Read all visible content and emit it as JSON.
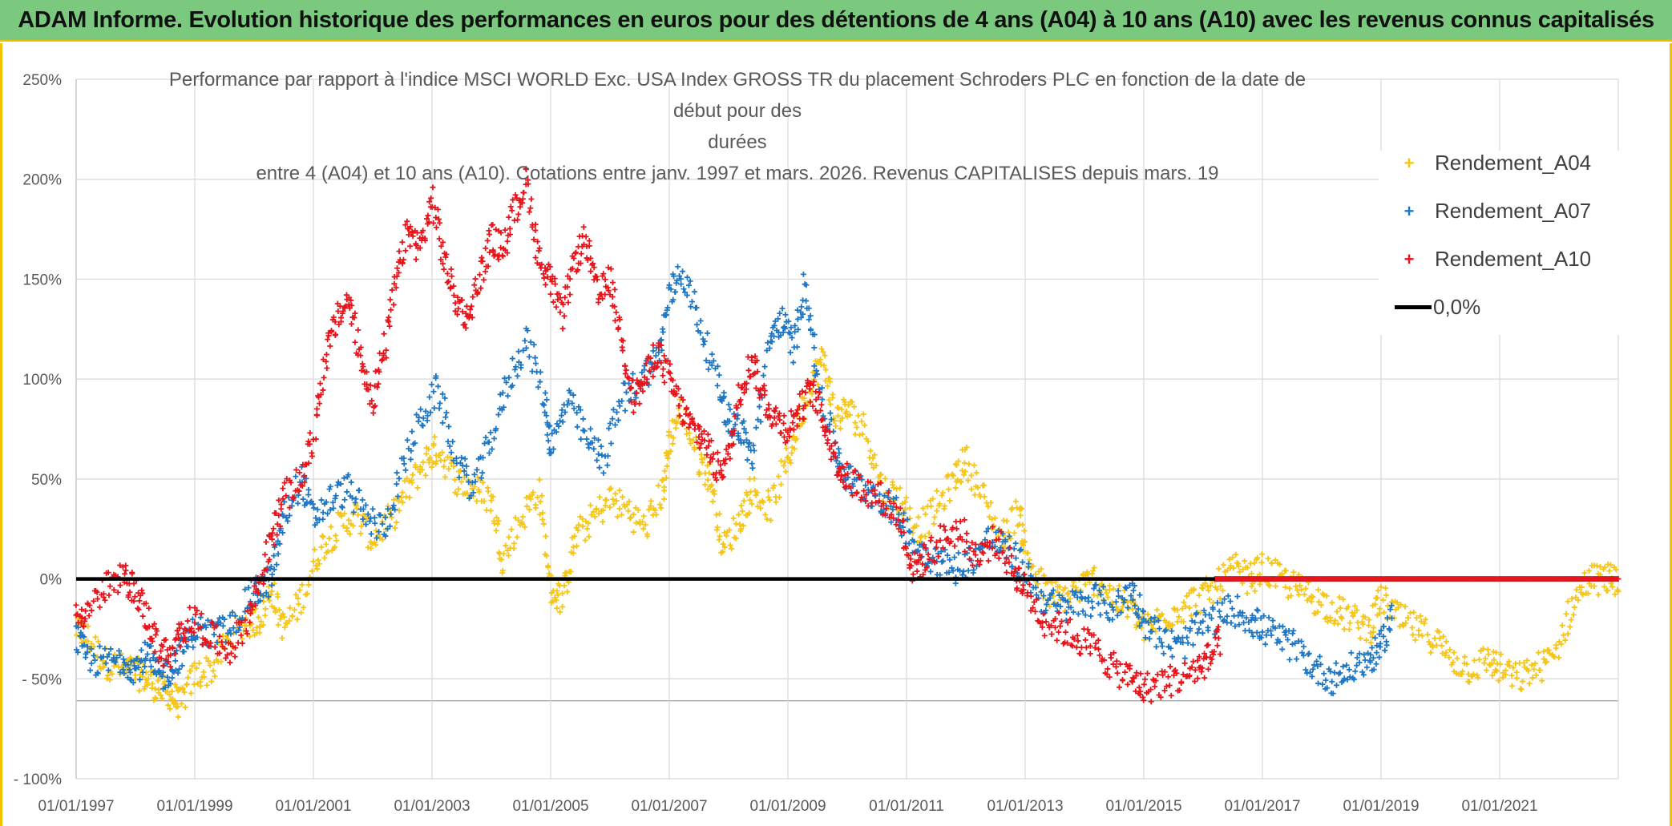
{
  "header": {
    "title": "ADAM Informe. Evolution historique des performances en euros pour des détentions de 4 ans (A04) à 10 ans (A10) avec les revenus connus capitalisés"
  },
  "chart_data": {
    "type": "scatter",
    "title_lines": [
      "Performance par rapport à l'indice MSCI WORLD Exc. USA Index GROSS TR  du placement Schroders PLC en fonction de la date de début pour des",
      "durées",
      "entre 4 (A04) et 10 ans (A10). Cotations entre janv. 1997 et mars. 2026. Revenus CAPITALISES depuis mars. 19"
    ],
    "xlabel": "",
    "ylabel": "",
    "x_range": [
      1997.0,
      2023.0
    ],
    "ylim": [
      -100,
      250
    ],
    "y_ticks": [
      "250%",
      "200%",
      "150%",
      "100%",
      "50%",
      "0%",
      "- 50%",
      "- 100%"
    ],
    "y_tick_values": [
      250,
      200,
      150,
      100,
      50,
      0,
      -50,
      -100
    ],
    "x_ticks": [
      "01/01/1997",
      "01/01/1999",
      "01/01/2001",
      "01/01/2003",
      "01/01/2005",
      "01/01/2007",
      "01/01/2009",
      "01/01/2011",
      "01/01/2013",
      "01/01/2015",
      "01/01/2017",
      "01/01/2019",
      "01/01/2021"
    ],
    "x_tick_values": [
      1997,
      1999,
      2001,
      2003,
      2005,
      2007,
      2009,
      2011,
      2013,
      2015,
      2017,
      2019,
      2021
    ],
    "grid": true,
    "legend_position": "top-right",
    "series": [
      {
        "name": "Rendement_A04",
        "color": "#f5c518",
        "marker": "+",
        "points": [
          [
            1997.0,
            -25
          ],
          [
            1997.2,
            -30
          ],
          [
            1997.5,
            -42
          ],
          [
            1997.8,
            -45
          ],
          [
            1998.0,
            -47
          ],
          [
            1998.2,
            -50
          ],
          [
            1998.4,
            -55
          ],
          [
            1998.6,
            -58
          ],
          [
            1998.75,
            -63
          ],
          [
            1999.0,
            -48
          ],
          [
            1999.3,
            -45
          ],
          [
            1999.6,
            -28
          ],
          [
            1999.9,
            -22
          ],
          [
            2000.1,
            -20
          ],
          [
            2000.3,
            -5
          ],
          [
            2000.5,
            -25
          ],
          [
            2000.8,
            -10
          ],
          [
            2001.1,
            15
          ],
          [
            2001.4,
            25
          ],
          [
            2001.7,
            32
          ],
          [
            2002.0,
            20
          ],
          [
            2002.3,
            30
          ],
          [
            2002.6,
            45
          ],
          [
            2002.9,
            60
          ],
          [
            2003.1,
            65
          ],
          [
            2003.4,
            50
          ],
          [
            2003.7,
            45
          ],
          [
            2004.0,
            40
          ],
          [
            2004.2,
            10
          ],
          [
            2004.5,
            30
          ],
          [
            2004.8,
            45
          ],
          [
            2005.0,
            -5
          ],
          [
            2005.2,
            -10
          ],
          [
            2005.4,
            20
          ],
          [
            2005.7,
            30
          ],
          [
            2006.0,
            40
          ],
          [
            2006.3,
            35
          ],
          [
            2006.6,
            25
          ],
          [
            2006.9,
            45
          ],
          [
            2007.0,
            70
          ],
          [
            2007.2,
            85
          ],
          [
            2007.5,
            60
          ],
          [
            2007.7,
            50
          ],
          [
            2007.9,
            15
          ],
          [
            2008.2,
            30
          ],
          [
            2008.4,
            45
          ],
          [
            2008.7,
            35
          ],
          [
            2009.0,
            60
          ],
          [
            2009.2,
            80
          ],
          [
            2009.4,
            100
          ],
          [
            2009.6,
            110
          ],
          [
            2009.8,
            80
          ],
          [
            2010.0,
            85
          ],
          [
            2010.3,
            75
          ],
          [
            2010.6,
            45
          ],
          [
            2010.9,
            40
          ],
          [
            2011.2,
            25
          ],
          [
            2011.5,
            35
          ],
          [
            2011.8,
            50
          ],
          [
            2012.0,
            60
          ],
          [
            2012.3,
            40
          ],
          [
            2012.6,
            20
          ],
          [
            2012.9,
            35
          ],
          [
            2013.0,
            15
          ],
          [
            2013.3,
            -5
          ],
          [
            2013.6,
            -10
          ],
          [
            2013.9,
            -5
          ],
          [
            2014.2,
            0
          ],
          [
            2014.5,
            -10
          ],
          [
            2014.8,
            -15
          ],
          [
            2015.0,
            -25
          ],
          [
            2015.3,
            -20
          ],
          [
            2015.6,
            -15
          ],
          [
            2015.9,
            -10
          ],
          [
            2016.2,
            -5
          ],
          [
            2016.5,
            5
          ],
          [
            2016.8,
            0
          ],
          [
            2017.0,
            5
          ],
          [
            2017.3,
            0
          ],
          [
            2017.6,
            -5
          ],
          [
            2017.9,
            -10
          ],
          [
            2018.2,
            -15
          ],
          [
            2018.5,
            -20
          ],
          [
            2018.8,
            -25
          ],
          [
            2019.0,
            -10
          ],
          [
            2019.3,
            -20
          ],
          [
            2019.6,
            -25
          ],
          [
            2019.9,
            -30
          ],
          [
            2020.2,
            -40
          ],
          [
            2020.5,
            -45
          ],
          [
            2020.8,
            -40
          ],
          [
            2021.0,
            -45
          ],
          [
            2021.3,
            -50
          ],
          [
            2021.6,
            -45
          ],
          [
            2021.9,
            -40
          ],
          [
            2022.2,
            -15
          ],
          [
            2022.5,
            0
          ],
          [
            2022.8,
            0
          ],
          [
            2023.0,
            0
          ]
        ]
      },
      {
        "name": "Rendement_A07",
        "color": "#1f77c4",
        "marker": "+",
        "points": [
          [
            1997.0,
            -30
          ],
          [
            1997.2,
            -40
          ],
          [
            1997.5,
            -42
          ],
          [
            1997.8,
            -40
          ],
          [
            1998.0,
            -45
          ],
          [
            1998.2,
            -38
          ],
          [
            1998.4,
            -50
          ],
          [
            1998.6,
            -45
          ],
          [
            1998.8,
            -35
          ],
          [
            1999.0,
            -25
          ],
          [
            1999.3,
            -28
          ],
          [
            1999.6,
            -25
          ],
          [
            1999.9,
            -10
          ],
          [
            2000.1,
            -5
          ],
          [
            2000.3,
            0
          ],
          [
            2000.5,
            30
          ],
          [
            2000.8,
            50
          ],
          [
            2001.0,
            30
          ],
          [
            2001.3,
            40
          ],
          [
            2001.6,
            45
          ],
          [
            2001.9,
            30
          ],
          [
            2002.2,
            25
          ],
          [
            2002.5,
            55
          ],
          [
            2002.8,
            80
          ],
          [
            2003.1,
            95
          ],
          [
            2003.4,
            60
          ],
          [
            2003.7,
            45
          ],
          [
            2004.0,
            70
          ],
          [
            2004.3,
            100
          ],
          [
            2004.6,
            120
          ],
          [
            2004.9,
            90
          ],
          [
            2005.0,
            65
          ],
          [
            2005.3,
            90
          ],
          [
            2005.6,
            70
          ],
          [
            2005.9,
            60
          ],
          [
            2006.2,
            90
          ],
          [
            2006.5,
            100
          ],
          [
            2006.8,
            110
          ],
          [
            2007.0,
            140
          ],
          [
            2007.2,
            155
          ],
          [
            2007.5,
            130
          ],
          [
            2007.8,
            100
          ],
          [
            2008.0,
            80
          ],
          [
            2008.2,
            75
          ],
          [
            2008.4,
            60
          ],
          [
            2008.7,
            120
          ],
          [
            2008.9,
            130
          ],
          [
            2009.1,
            115
          ],
          [
            2009.3,
            150
          ],
          [
            2009.5,
            100
          ],
          [
            2009.8,
            65
          ],
          [
            2010.0,
            50
          ],
          [
            2010.3,
            45
          ],
          [
            2010.6,
            40
          ],
          [
            2010.9,
            30
          ],
          [
            2011.2,
            15
          ],
          [
            2011.5,
            10
          ],
          [
            2011.8,
            5
          ],
          [
            2012.1,
            10
          ],
          [
            2012.4,
            20
          ],
          [
            2012.7,
            15
          ],
          [
            2013.0,
            5
          ],
          [
            2013.3,
            -10
          ],
          [
            2013.6,
            -15
          ],
          [
            2013.9,
            -12
          ],
          [
            2014.2,
            -10
          ],
          [
            2014.5,
            -15
          ],
          [
            2014.8,
            -5
          ],
          [
            2015.0,
            -20
          ],
          [
            2015.3,
            -30
          ],
          [
            2015.6,
            -35
          ],
          [
            2015.9,
            -25
          ],
          [
            2016.2,
            -20
          ],
          [
            2016.5,
            -15
          ],
          [
            2016.8,
            -20
          ],
          [
            2017.0,
            -25
          ],
          [
            2017.3,
            -30
          ],
          [
            2017.6,
            -35
          ],
          [
            2017.9,
            -45
          ],
          [
            2018.2,
            -50
          ],
          [
            2018.5,
            -45
          ],
          [
            2018.8,
            -40
          ],
          [
            2019.0,
            -35
          ],
          [
            2019.2,
            -15
          ]
        ]
      },
      {
        "name": "Rendement_A10",
        "color": "#e8141c",
        "marker": "+",
        "points": [
          [
            1997.0,
            -20
          ],
          [
            1997.2,
            -15
          ],
          [
            1997.5,
            -5
          ],
          [
            1997.8,
            0
          ],
          [
            1998.0,
            -5
          ],
          [
            1998.2,
            -20
          ],
          [
            1998.4,
            -35
          ],
          [
            1998.6,
            -40
          ],
          [
            1998.8,
            -25
          ],
          [
            1999.0,
            -20
          ],
          [
            1999.3,
            -30
          ],
          [
            1999.6,
            -35
          ],
          [
            1999.9,
            -20
          ],
          [
            2000.1,
            0
          ],
          [
            2000.3,
            20
          ],
          [
            2000.5,
            40
          ],
          [
            2000.8,
            50
          ],
          [
            2001.0,
            70
          ],
          [
            2001.2,
            110
          ],
          [
            2001.4,
            130
          ],
          [
            2001.6,
            140
          ],
          [
            2001.8,
            110
          ],
          [
            2002.0,
            90
          ],
          [
            2002.2,
            115
          ],
          [
            2002.4,
            150
          ],
          [
            2002.6,
            175
          ],
          [
            2002.8,
            165
          ],
          [
            2003.0,
            190
          ],
          [
            2003.2,
            160
          ],
          [
            2003.4,
            140
          ],
          [
            2003.6,
            130
          ],
          [
            2003.8,
            150
          ],
          [
            2004.0,
            170
          ],
          [
            2004.2,
            165
          ],
          [
            2004.4,
            185
          ],
          [
            2004.6,
            200
          ],
          [
            2004.8,
            160
          ],
          [
            2005.0,
            150
          ],
          [
            2005.2,
            130
          ],
          [
            2005.4,
            160
          ],
          [
            2005.6,
            170
          ],
          [
            2005.8,
            140
          ],
          [
            2006.0,
            150
          ],
          [
            2006.2,
            120
          ],
          [
            2006.4,
            90
          ],
          [
            2006.6,
            100
          ],
          [
            2006.8,
            115
          ],
          [
            2007.0,
            100
          ],
          [
            2007.2,
            85
          ],
          [
            2007.4,
            75
          ],
          [
            2007.6,
            70
          ],
          [
            2007.8,
            55
          ],
          [
            2008.0,
            60
          ],
          [
            2008.2,
            95
          ],
          [
            2008.4,
            110
          ],
          [
            2008.6,
            90
          ],
          [
            2008.8,
            80
          ],
          [
            2009.0,
            75
          ],
          [
            2009.2,
            85
          ],
          [
            2009.4,
            95
          ],
          [
            2009.6,
            80
          ],
          [
            2009.8,
            60
          ],
          [
            2010.0,
            50
          ],
          [
            2010.3,
            45
          ],
          [
            2010.6,
            40
          ],
          [
            2010.9,
            30
          ],
          [
            2011.1,
            5
          ],
          [
            2011.3,
            10
          ],
          [
            2011.6,
            20
          ],
          [
            2011.9,
            25
          ],
          [
            2012.2,
            10
          ],
          [
            2012.5,
            20
          ],
          [
            2012.8,
            5
          ],
          [
            2013.0,
            -5
          ],
          [
            2013.3,
            -20
          ],
          [
            2013.6,
            -25
          ],
          [
            2013.9,
            -30
          ],
          [
            2014.2,
            -35
          ],
          [
            2014.5,
            -45
          ],
          [
            2014.8,
            -50
          ],
          [
            2015.0,
            -55
          ],
          [
            2015.3,
            -52
          ],
          [
            2015.6,
            -50
          ],
          [
            2015.9,
            -45
          ],
          [
            2016.1,
            -40
          ],
          [
            2016.3,
            -30
          ]
        ]
      }
    ],
    "reference_line": {
      "name": "0,0%",
      "value": 0,
      "color": "#000000"
    },
    "flat_segment": {
      "series": "Rendement_A10",
      "from": 2016.2,
      "to": 2023.0,
      "value": 0
    }
  }
}
